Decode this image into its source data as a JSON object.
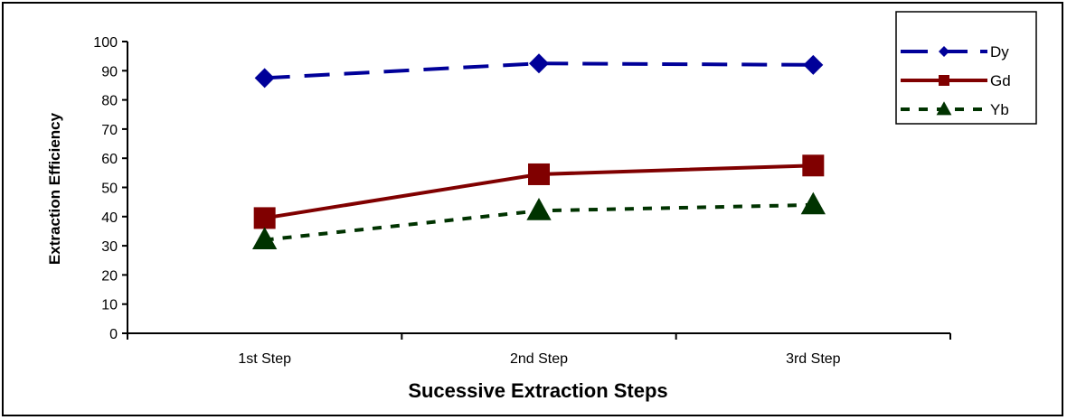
{
  "chart_data": {
    "type": "line",
    "title": "",
    "xlabel": "Sucessive Extraction Steps",
    "ylabel": "Extraction Efficiency",
    "categories": [
      "1st Step",
      "2nd Step",
      "3rd  Step"
    ],
    "ylim": [
      0,
      100
    ],
    "yticks": [
      0,
      10,
      20,
      30,
      40,
      50,
      60,
      70,
      80,
      90,
      100
    ],
    "grid": false,
    "legend_position": "top-right",
    "series": [
      {
        "name": "Dy",
        "values": [
          87.5,
          92.5,
          92
        ],
        "color": "#000099",
        "marker": "diamond",
        "dash": "long-dash"
      },
      {
        "name": "Gd",
        "values": [
          39.5,
          54.5,
          57.5
        ],
        "color": "#800000",
        "marker": "square",
        "dash": "solid"
      },
      {
        "name": "Yb",
        "values": [
          32,
          42,
          44
        ],
        "color": "#003300",
        "marker": "triangle",
        "dash": "short-dash"
      }
    ]
  }
}
